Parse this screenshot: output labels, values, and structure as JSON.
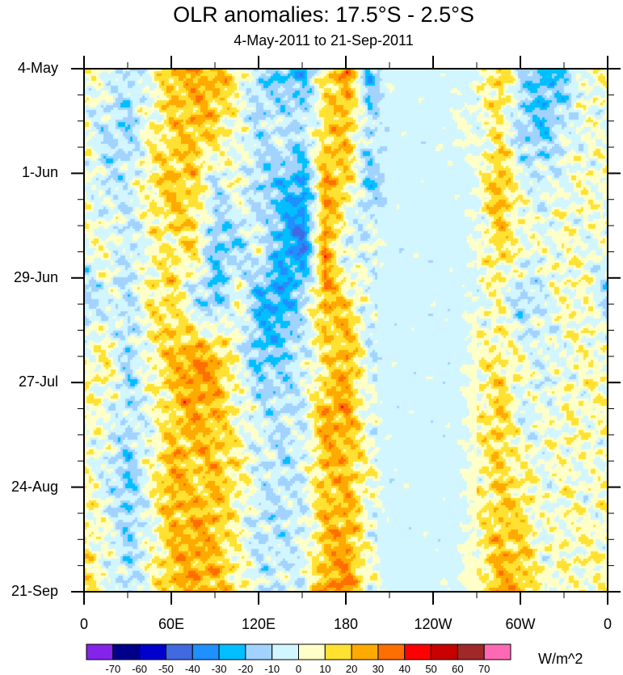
{
  "chart_data": {
    "type": "heatmap",
    "title": "OLR anomalies: 17.5°S - 2.5°S",
    "subtitle": "4-May-2011 to 21-Sep-2011",
    "xlabel": "Longitude",
    "ylabel": "Time",
    "x_ticks": [
      "0",
      "60E",
      "120E",
      "180",
      "120W",
      "60W",
      "0"
    ],
    "y_ticks": [
      "4-May",
      "1-Jun",
      "29-Jun",
      "27-Jul",
      "24-Aug",
      "21-Sep"
    ],
    "xlim": [
      0,
      360
    ],
    "ylim_days": [
      0,
      140
    ],
    "grid_lon": [
      0,
      15,
      30,
      45,
      60,
      75,
      90,
      105,
      120,
      135,
      150,
      165,
      180,
      195,
      210,
      225,
      240,
      255,
      270,
      285,
      300,
      315,
      330,
      345,
      360
    ],
    "grid_day": [
      0,
      16,
      31,
      47,
      62,
      78,
      93,
      109,
      124,
      140
    ],
    "values": [
      [
        5,
        0,
        -10,
        0,
        20,
        25,
        25,
        10,
        -15,
        -20,
        -25,
        10,
        30,
        -25,
        0,
        -5,
        -5,
        -5,
        0,
        20,
        -10,
        -25,
        -20,
        5,
        5
      ],
      [
        0,
        -10,
        -15,
        5,
        15,
        20,
        15,
        0,
        -10,
        -5,
        -10,
        15,
        20,
        -10,
        -5,
        -5,
        -5,
        0,
        0,
        10,
        -15,
        -20,
        -5,
        0,
        0
      ],
      [
        5,
        -10,
        -5,
        10,
        20,
        15,
        -10,
        5,
        -15,
        -20,
        -30,
        25,
        15,
        -20,
        -5,
        -5,
        -5,
        -5,
        0,
        25,
        0,
        -5,
        0,
        5,
        5
      ],
      [
        0,
        5,
        -10,
        5,
        10,
        15,
        -20,
        -15,
        0,
        -25,
        -40,
        30,
        -10,
        0,
        -5,
        -5,
        -5,
        -5,
        0,
        15,
        5,
        0,
        5,
        0,
        0
      ],
      [
        -15,
        -5,
        -10,
        10,
        15,
        -10,
        -20,
        5,
        -25,
        -30,
        -10,
        25,
        15,
        -5,
        -5,
        -5,
        -5,
        -5,
        0,
        5,
        -15,
        -5,
        5,
        5,
        -15
      ],
      [
        5,
        10,
        -15,
        5,
        20,
        30,
        25,
        0,
        -20,
        -15,
        -5,
        10,
        25,
        -5,
        -5,
        -5,
        -5,
        -5,
        5,
        10,
        5,
        -5,
        0,
        5,
        5
      ],
      [
        5,
        0,
        -10,
        0,
        15,
        25,
        20,
        5,
        -5,
        -10,
        -5,
        25,
        25,
        0,
        -5,
        -5,
        -5,
        -5,
        5,
        20,
        -5,
        0,
        5,
        5,
        5
      ],
      [
        5,
        -5,
        -20,
        5,
        25,
        15,
        20,
        10,
        -5,
        -10,
        -5,
        20,
        20,
        5,
        -5,
        -5,
        -5,
        -5,
        5,
        15,
        10,
        0,
        5,
        0,
        5
      ],
      [
        10,
        0,
        -15,
        0,
        20,
        25,
        20,
        5,
        -10,
        -10,
        -5,
        20,
        25,
        0,
        -5,
        -5,
        -5,
        -5,
        5,
        20,
        15,
        0,
        5,
        5,
        5
      ],
      [
        15,
        0,
        -10,
        5,
        20,
        25,
        20,
        10,
        -5,
        -5,
        0,
        25,
        30,
        5,
        -5,
        -5,
        -5,
        0,
        5,
        25,
        20,
        5,
        5,
        5,
        5
      ]
    ],
    "colorbar": {
      "units": "W/m^2",
      "labels": [
        "-70",
        "-60",
        "-50",
        "-40",
        "-30",
        "-20",
        "-10",
        "0",
        "10",
        "20",
        "30",
        "40",
        "50",
        "60",
        "70"
      ],
      "colors": [
        "#8424ea",
        "#00008b",
        "#0000cd",
        "#4169e1",
        "#1e90ff",
        "#00bfff",
        "#a2d3ff",
        "#d2f6ff",
        "#ffffc8",
        "#ffe132",
        "#ffaa00",
        "#ff6e00",
        "#ff0000",
        "#c80000",
        "#a02828",
        "#ff69b4"
      ]
    },
    "grid": false,
    "legend": "bottom"
  }
}
